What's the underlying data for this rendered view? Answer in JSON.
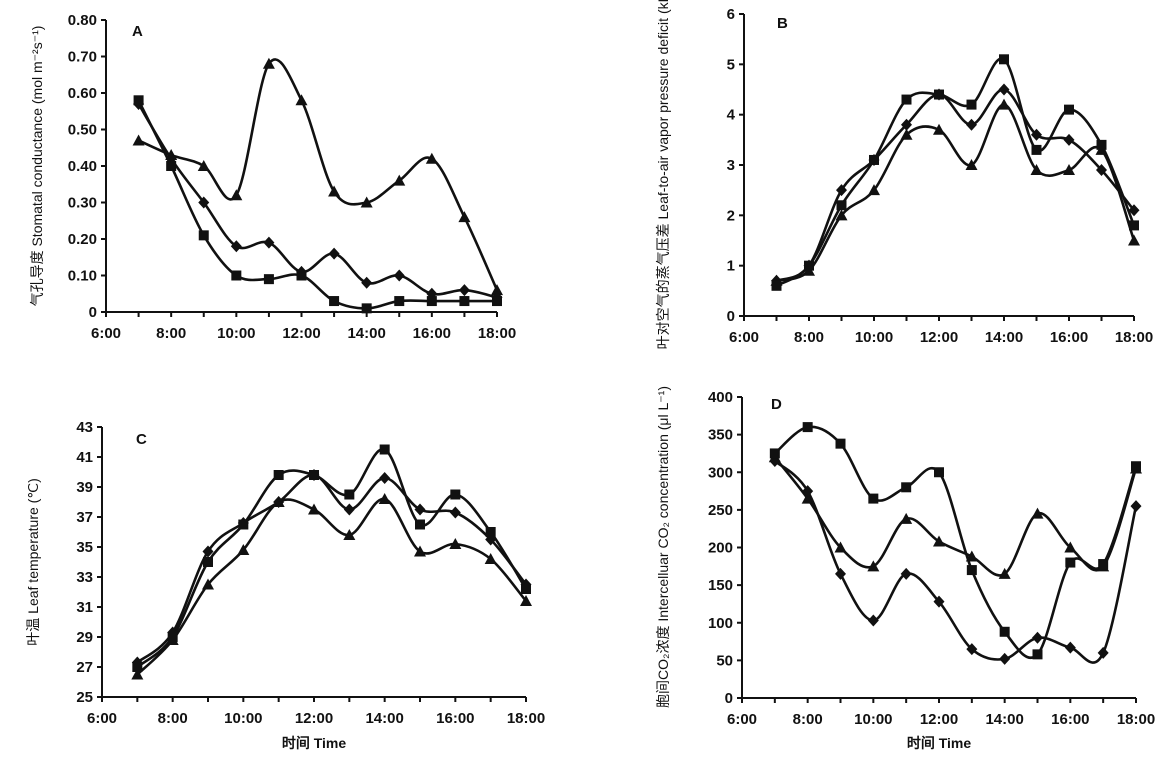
{
  "chart_data": [
    {
      "panel": "A",
      "type": "line",
      "ylabel": "气孔导度 Stomatal conductance (mol m⁻²s⁻¹)",
      "xlabel": "",
      "ylim": [
        0,
        0.8
      ],
      "yticks": [
        0,
        0.1,
        0.2,
        0.3,
        0.4,
        0.5,
        0.6,
        0.7,
        0.8
      ],
      "ytick_labels": [
        "0",
        "0.10",
        "0.20",
        "0.30",
        "0.40",
        "0.50",
        "0.60",
        "0.70",
        "0.80"
      ],
      "xlim": [
        6,
        18
      ],
      "xtick_labels": [
        "6:00",
        "8:00",
        "10:00",
        "12:00",
        "14:00",
        "16:00",
        "18:00"
      ],
      "series": [
        {
          "marker": "triangle",
          "x": [
            7,
            8,
            9,
            10,
            11,
            12,
            13,
            14,
            15,
            16,
            17,
            18
          ],
          "y": [
            0.47,
            0.43,
            0.4,
            0.32,
            0.68,
            0.58,
            0.33,
            0.3,
            0.36,
            0.42,
            0.26,
            0.06
          ]
        },
        {
          "marker": "diamond",
          "x": [
            7,
            8,
            9,
            10,
            11,
            12,
            13,
            14,
            15,
            16,
            17,
            18
          ],
          "y": [
            0.57,
            0.42,
            0.3,
            0.18,
            0.19,
            0.11,
            0.16,
            0.08,
            0.1,
            0.05,
            0.06,
            0.04
          ]
        },
        {
          "marker": "square",
          "x": [
            7,
            8,
            9,
            10,
            11,
            12,
            13,
            14,
            15,
            16,
            17,
            18
          ],
          "y": [
            0.58,
            0.4,
            0.21,
            0.1,
            0.09,
            0.1,
            0.03,
            0.01,
            0.03,
            0.03,
            0.03,
            0.03
          ]
        }
      ]
    },
    {
      "panel": "B",
      "type": "line",
      "ylabel": "叶对空气的蒸气压差 Leaf-to-air vapor pressure deficit (kPa)",
      "xlabel": "",
      "ylim": [
        0,
        6
      ],
      "yticks": [
        0,
        1,
        2,
        3,
        4,
        5,
        6
      ],
      "ytick_labels": [
        "0",
        "1",
        "2",
        "3",
        "4",
        "5",
        "6"
      ],
      "xlim": [
        6,
        18
      ],
      "xtick_labels": [
        "6:00",
        "8:00",
        "10:00",
        "12:00",
        "14:00",
        "16:00",
        "18:00"
      ],
      "series": [
        {
          "marker": "triangle",
          "x": [
            7,
            8,
            9,
            10,
            11,
            12,
            13,
            14,
            15,
            16,
            17,
            18
          ],
          "y": [
            0.7,
            0.9,
            2.0,
            2.5,
            3.6,
            3.7,
            3.0,
            4.2,
            2.9,
            2.9,
            3.3,
            1.5
          ]
        },
        {
          "marker": "diamond",
          "x": [
            7,
            8,
            9,
            10,
            11,
            12,
            13,
            14,
            15,
            16,
            17,
            18
          ],
          "y": [
            0.7,
            1.0,
            2.5,
            3.1,
            3.8,
            4.4,
            3.8,
            4.5,
            3.6,
            3.5,
            2.9,
            2.1
          ]
        },
        {
          "marker": "square",
          "x": [
            7,
            8,
            9,
            10,
            11,
            12,
            13,
            14,
            15,
            16,
            17,
            18
          ],
          "y": [
            0.6,
            1.0,
            2.2,
            3.1,
            4.3,
            4.4,
            4.2,
            5.1,
            3.3,
            4.1,
            3.4,
            1.8
          ]
        }
      ]
    },
    {
      "panel": "C",
      "type": "line",
      "ylabel": "叶温 Leaf temperature (℃)",
      "xlabel": "时间 Time",
      "ylim": [
        25,
        43
      ],
      "yticks": [
        25,
        27,
        29,
        31,
        33,
        35,
        37,
        39,
        41,
        43
      ],
      "ytick_labels": [
        "25",
        "27",
        "29",
        "31",
        "33",
        "35",
        "37",
        "39",
        "41",
        "43"
      ],
      "xlim": [
        6,
        18
      ],
      "xtick_labels": [
        "6:00",
        "8:00",
        "10:00",
        "12:00",
        "14:00",
        "16:00",
        "18:00"
      ],
      "series": [
        {
          "marker": "triangle",
          "x": [
            7,
            8,
            9,
            10,
            11,
            12,
            13,
            14,
            15,
            16,
            17,
            18
          ],
          "y": [
            26.5,
            28.8,
            32.5,
            34.8,
            38.0,
            37.5,
            35.8,
            38.2,
            34.7,
            35.2,
            34.2,
            31.4
          ]
        },
        {
          "marker": "diamond",
          "x": [
            7,
            8,
            9,
            10,
            11,
            12,
            13,
            14,
            15,
            16,
            17,
            18
          ],
          "y": [
            27.3,
            29.3,
            34.7,
            36.6,
            38.0,
            39.8,
            37.5,
            39.6,
            37.5,
            37.3,
            35.5,
            32.5
          ]
        },
        {
          "marker": "square",
          "x": [
            7,
            8,
            9,
            10,
            11,
            12,
            13,
            14,
            15,
            16,
            17,
            18
          ],
          "y": [
            27.0,
            29.0,
            34.0,
            36.5,
            39.8,
            39.8,
            38.5,
            41.5,
            36.5,
            38.5,
            36.0,
            32.2
          ]
        }
      ]
    },
    {
      "panel": "D",
      "type": "line",
      "ylabel": "胞间CO₂浓度 Intercelluar CO₂ concentration (μl L⁻¹)",
      "xlabel": "时间 Time",
      "ylim": [
        0,
        400
      ],
      "yticks": [
        0,
        50,
        100,
        150,
        200,
        250,
        300,
        350,
        400
      ],
      "ytick_labels": [
        "0",
        "50",
        "100",
        "150",
        "200",
        "250",
        "300",
        "350",
        "400"
      ],
      "xlim": [
        6,
        18
      ],
      "xtick_labels": [
        "6:00",
        "8:00",
        "10:00",
        "12:00",
        "14:00",
        "16:00",
        "18:00"
      ],
      "series": [
        {
          "marker": "triangle",
          "x": [
            7,
            8,
            9,
            10,
            11,
            12,
            13,
            14,
            15,
            16,
            17,
            18
          ],
          "y": [
            320,
            265,
            200,
            175,
            238,
            208,
            188,
            165,
            245,
            200,
            175,
            305
          ]
        },
        {
          "marker": "diamond",
          "x": [
            7,
            8,
            9,
            10,
            11,
            12,
            13,
            14,
            15,
            16,
            17,
            18
          ],
          "y": [
            315,
            275,
            165,
            103,
            165,
            128,
            65,
            52,
            80,
            67,
            60,
            255
          ]
        },
        {
          "marker": "square",
          "x": [
            7,
            8,
            9,
            10,
            11,
            12,
            13,
            14,
            15,
            16,
            17,
            18
          ],
          "y": [
            325,
            360,
            338,
            265,
            280,
            300,
            170,
            88,
            58,
            180,
            178,
            308
          ]
        }
      ]
    }
  ]
}
